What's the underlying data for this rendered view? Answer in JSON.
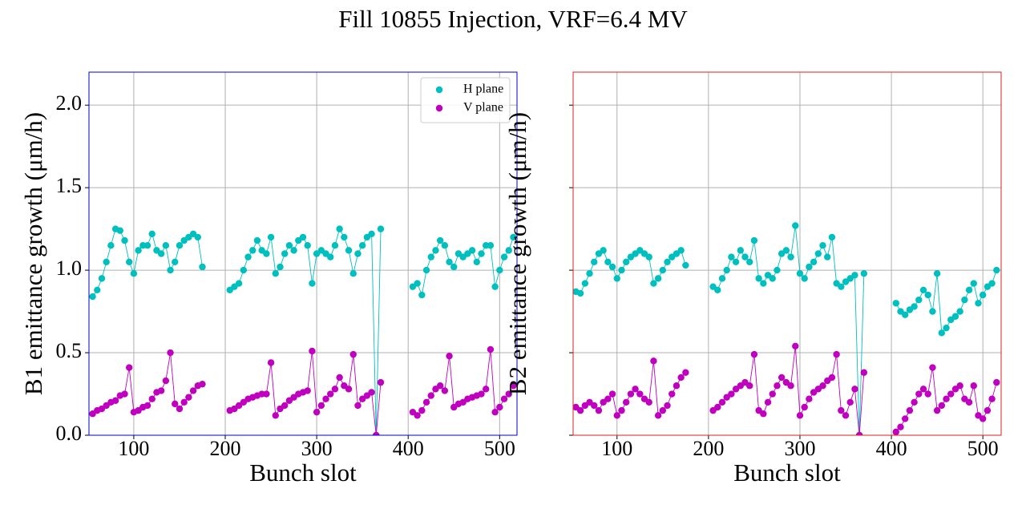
{
  "title": "Fill 10855 Injection, VRF=6.4 MV",
  "chart_data": [
    {
      "type": "line",
      "ylabel": "B1 emittance growth (μm/h)",
      "xlabel": "Bunch slot",
      "xlim": [
        51,
        519
      ],
      "ylim": [
        0,
        2.2
      ],
      "xticks": [
        100,
        200,
        300,
        400,
        500
      ],
      "yticks": [
        {
          "value": 0,
          "label": "0.0"
        },
        {
          "value": 0.5,
          "label": "0.5"
        },
        {
          "value": 1,
          "label": "1.0"
        },
        {
          "value": 1.5,
          "label": "1.5"
        },
        {
          "value": 2,
          "label": "2.0"
        }
      ],
      "show_ytick_labels": true,
      "grid": true,
      "frame_color": "#0000cc",
      "legend": "upper right",
      "x": [
        55,
        60,
        65,
        70,
        75,
        80,
        85,
        90,
        95,
        100,
        105,
        110,
        115,
        120,
        125,
        130,
        135,
        140,
        145,
        150,
        155,
        160,
        165,
        170,
        175,
        190,
        205,
        210,
        215,
        220,
        225,
        230,
        235,
        240,
        245,
        250,
        255,
        260,
        265,
        270,
        275,
        280,
        285,
        290,
        295,
        300,
        305,
        310,
        315,
        320,
        325,
        330,
        335,
        340,
        345,
        350,
        355,
        360,
        365,
        370,
        387,
        405,
        410,
        415,
        420,
        425,
        430,
        435,
        440,
        445,
        450,
        455,
        460,
        465,
        470,
        475,
        480,
        485,
        490,
        495,
        500,
        505,
        510,
        515
      ],
      "series": [
        {
          "name": "H plane",
          "color": "#00bfbf",
          "values": [
            0.84,
            0.88,
            0.95,
            1.05,
            1.15,
            1.25,
            1.24,
            1.18,
            1.05,
            0.98,
            1.12,
            1.15,
            1.15,
            1.22,
            1.12,
            1.1,
            1.15,
            1.0,
            1.05,
            1.15,
            1.18,
            1.2,
            1.22,
            1.2,
            1.02,
            null,
            0.88,
            0.9,
            0.92,
            1.0,
            1.08,
            1.12,
            1.18,
            1.12,
            1.1,
            1.2,
            0.98,
            1.02,
            1.1,
            1.15,
            1.12,
            1.18,
            1.2,
            1.15,
            0.92,
            1.1,
            1.12,
            1.1,
            1.08,
            1.15,
            1.25,
            1.2,
            1.12,
            0.98,
            1.1,
            1.15,
            1.2,
            1.22,
            0.0,
            1.25,
            null,
            0.9,
            0.92,
            0.85,
            1.0,
            1.08,
            1.12,
            1.18,
            1.15,
            1.05,
            1.02,
            1.1,
            1.08,
            1.1,
            1.12,
            1.05,
            1.1,
            1.15,
            1.15,
            0.9,
            1.0,
            1.08,
            1.12,
            1.2
          ]
        },
        {
          "name": "V plane",
          "color": "#bf00bf",
          "values": [
            0.13,
            0.15,
            0.16,
            0.18,
            0.2,
            0.21,
            0.24,
            0.25,
            0.41,
            0.14,
            0.15,
            0.17,
            0.18,
            0.22,
            0.26,
            0.27,
            0.33,
            0.5,
            0.19,
            0.16,
            0.2,
            0.23,
            0.27,
            0.3,
            0.31,
            null,
            0.15,
            0.16,
            0.18,
            0.2,
            0.22,
            0.23,
            0.24,
            0.25,
            0.25,
            0.44,
            0.12,
            0.16,
            0.18,
            0.21,
            0.23,
            0.25,
            0.26,
            0.27,
            0.51,
            0.14,
            0.18,
            0.22,
            0.25,
            0.28,
            0.35,
            0.3,
            0.28,
            0.49,
            0.18,
            0.22,
            0.24,
            0.26,
            0.0,
            0.32,
            null,
            0.14,
            0.12,
            0.15,
            0.2,
            0.24,
            0.28,
            0.3,
            0.27,
            0.48,
            0.17,
            0.19,
            0.2,
            0.22,
            0.23,
            0.24,
            0.25,
            0.28,
            0.52,
            0.14,
            0.17,
            0.22,
            0.25,
            0.3
          ]
        }
      ]
    },
    {
      "type": "line",
      "ylabel": "B2 emittance growth (μm/h)",
      "xlabel": "Bunch slot",
      "xlim": [
        52,
        520
      ],
      "ylim": [
        0,
        2.2
      ],
      "xticks": [
        100,
        200,
        300,
        400,
        500
      ],
      "yticks": [
        0,
        0.5,
        1,
        1.5,
        2
      ],
      "show_ytick_labels": false,
      "grid": true,
      "frame_color": "#dd2222",
      "x": [
        55,
        60,
        65,
        70,
        75,
        80,
        85,
        90,
        95,
        100,
        105,
        110,
        115,
        120,
        125,
        130,
        135,
        140,
        145,
        150,
        155,
        160,
        165,
        170,
        175,
        190,
        205,
        210,
        215,
        220,
        225,
        230,
        235,
        240,
        245,
        250,
        255,
        260,
        265,
        270,
        275,
        280,
        285,
        290,
        295,
        300,
        305,
        310,
        315,
        320,
        325,
        330,
        335,
        340,
        345,
        350,
        355,
        360,
        365,
        370,
        387,
        405,
        410,
        415,
        420,
        425,
        430,
        435,
        440,
        445,
        450,
        455,
        460,
        465,
        470,
        475,
        480,
        485,
        490,
        495,
        500,
        505,
        510,
        515
      ],
      "series": [
        {
          "color": "#00bfbf",
          "values": [
            0.87,
            0.86,
            0.92,
            0.98,
            1.05,
            1.1,
            1.12,
            1.05,
            1.02,
            0.95,
            1.0,
            1.05,
            1.08,
            1.1,
            1.12,
            1.1,
            1.08,
            0.92,
            0.95,
            1.0,
            1.05,
            1.08,
            1.1,
            1.12,
            1.03,
            null,
            0.9,
            0.88,
            0.95,
            1.0,
            1.08,
            1.05,
            1.12,
            1.08,
            1.05,
            1.18,
            0.95,
            0.92,
            0.97,
            0.95,
            1.0,
            1.1,
            1.12,
            1.08,
            1.27,
            0.98,
            0.95,
            1.02,
            1.05,
            1.1,
            1.15,
            1.08,
            1.2,
            0.92,
            0.9,
            0.93,
            0.95,
            0.97,
            0.0,
            0.98,
            null,
            0.8,
            0.75,
            0.73,
            0.76,
            0.78,
            0.82,
            0.88,
            0.85,
            0.75,
            0.98,
            0.62,
            0.65,
            0.7,
            0.72,
            0.75,
            0.82,
            0.88,
            0.92,
            0.8,
            0.85,
            0.9,
            0.92,
            1.0
          ]
        },
        {
          "color": "#bf00bf",
          "values": [
            0.17,
            0.15,
            0.18,
            0.2,
            0.18,
            0.15,
            0.2,
            0.22,
            0.25,
            0.12,
            0.15,
            0.2,
            0.25,
            0.28,
            0.25,
            0.22,
            0.2,
            0.45,
            0.12,
            0.15,
            0.18,
            0.25,
            0.3,
            0.35,
            0.38,
            null,
            0.15,
            0.17,
            0.2,
            0.23,
            0.25,
            0.28,
            0.3,
            0.32,
            0.3,
            0.49,
            0.15,
            0.13,
            0.2,
            0.25,
            0.3,
            0.35,
            0.32,
            0.3,
            0.54,
            0.12,
            0.17,
            0.22,
            0.26,
            0.28,
            0.3,
            0.33,
            0.35,
            0.49,
            0.15,
            0.12,
            0.2,
            0.28,
            0.0,
            0.38,
            null,
            0.02,
            0.05,
            0.1,
            0.15,
            0.2,
            0.25,
            0.28,
            0.25,
            0.41,
            0.15,
            0.18,
            0.22,
            0.25,
            0.28,
            0.3,
            0.22,
            0.2,
            0.3,
            0.12,
            0.1,
            0.15,
            0.22,
            0.32
          ]
        }
      ]
    }
  ]
}
